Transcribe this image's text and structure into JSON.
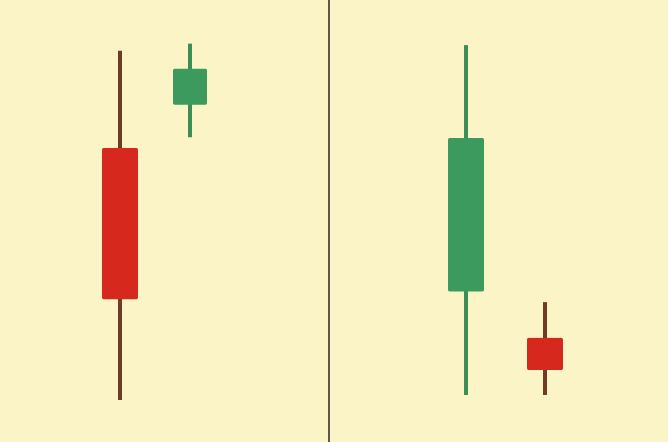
{
  "colors": {
    "background": "#fbf4c6",
    "divider": "#5e5848",
    "bearish_body": "#d6281c",
    "bearish_wick": "#6e3c24",
    "bullish_body": "#3c9a5e",
    "bullish_wick": "#3c8e56"
  },
  "chart_data": [
    {
      "type": "candlestick",
      "title": "",
      "xlabel": "",
      "ylabel": "",
      "grid": false,
      "ylim": [
        0,
        100
      ],
      "candles": [
        {
          "direction": "bearish",
          "open": 70,
          "close": 28,
          "high": 97,
          "low": 0
        },
        {
          "direction": "bullish",
          "open": 82,
          "close": 92,
          "high": 99,
          "low": 73
        }
      ]
    },
    {
      "type": "candlestick",
      "title": "",
      "xlabel": "",
      "ylabel": "",
      "grid": false,
      "ylim": [
        0,
        100
      ],
      "candles": [
        {
          "direction": "bullish",
          "open": 29,
          "close": 72,
          "high": 98,
          "low": 0
        },
        {
          "direction": "bearish",
          "open": 16,
          "close": 7,
          "high": 26,
          "low": 0
        }
      ]
    }
  ]
}
